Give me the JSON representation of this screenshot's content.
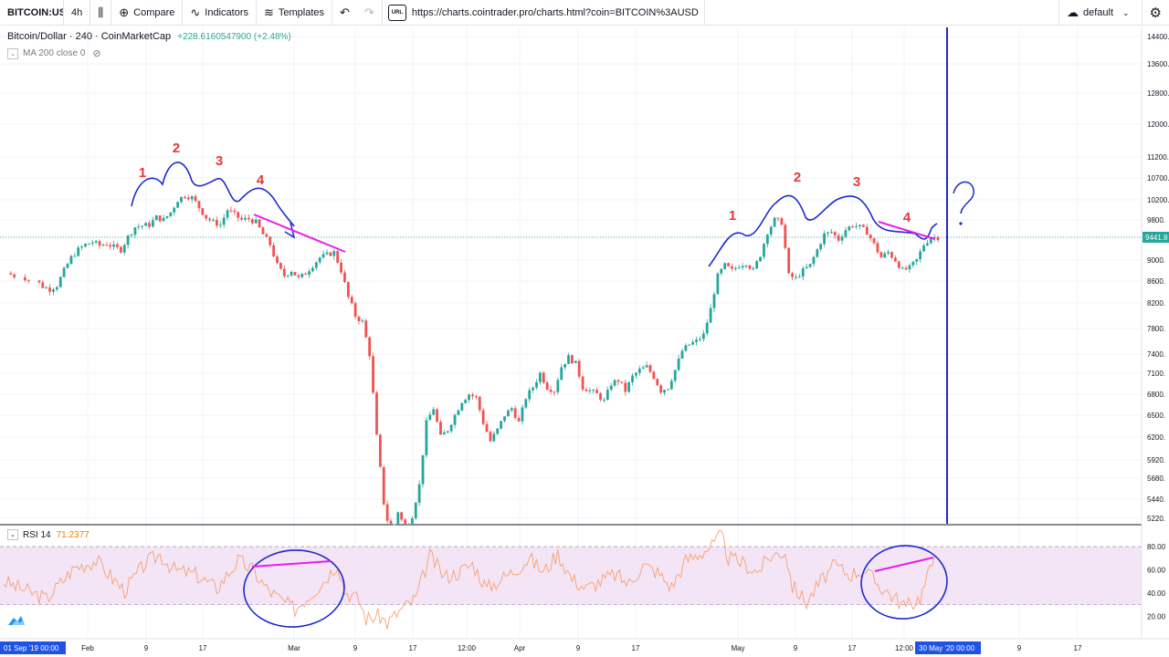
{
  "toolbar": {
    "symbol": "BITCOIN:USD",
    "interval": "4h",
    "compare_label": "Compare",
    "indicators_label": "Indicators",
    "templates_label": "Templates",
    "url": "https://charts.cointrader.pro/charts.html?coin=BITCOIN%3AUSD",
    "url_icon_text": "URL",
    "layout_label": "default"
  },
  "legend": {
    "title": "Bitcoin/Dollar · 240 · CoinMarketCap",
    "change": "+228.6160547900 (+2.48%)",
    "ma": "MA 200 close 0"
  },
  "rsi": {
    "label": "RSI 14",
    "value": "71.2377",
    "upper": 80,
    "lower": 30,
    "ticks": [
      80,
      60,
      40,
      20
    ],
    "tick_labels": [
      "80.00",
      "60.00",
      "40.00",
      "20.00"
    ]
  },
  "colors": {
    "up": "#26a69a",
    "down": "#ef5350",
    "rsi_line": "#f7a072",
    "rsi_band": "#f3e5f5",
    "annotation_blue": "#1e2ad1",
    "annotation_pink": "#e91ee8",
    "annotation_red": "#e53935"
  },
  "current_price_label": "9441.8",
  "x_labels": {
    "start_box": "01 Sep '19   00:00",
    "end_box": "30 May '20   00:00",
    "ticks": [
      "Feb",
      "9",
      "17",
      "Mar",
      "9",
      "17",
      "12:00",
      "Apr",
      "9",
      "17",
      "May",
      "9",
      "17",
      "12:00",
      "9",
      "17"
    ]
  },
  "chart_data": {
    "type": "candlestick",
    "title": "Bitcoin/Dollar · 240 · CoinMarketCap",
    "y_ticks": [
      14400,
      13600,
      12800,
      12000,
      11200,
      10700,
      10200,
      9800,
      9441.8,
      9000,
      8600,
      8200,
      7800,
      7400,
      7100,
      6800,
      6500,
      6200,
      5920,
      5680,
      5440,
      5220
    ],
    "y_tick_labels": [
      "14400.",
      "13600.",
      "12800.",
      "12000.",
      "11200.",
      "10700.",
      "10200.",
      "9800.",
      "9441.8",
      "9000.",
      "8600.",
      "8200.",
      "7800.",
      "7400.",
      "7100.",
      "6800.",
      "6500.",
      "6200.",
      "5920.",
      "5680.",
      "5440.",
      "5220."
    ],
    "last_price": 9441.8,
    "price_path": [
      [
        1,
        8750
      ],
      [
        3,
        8700
      ],
      [
        5,
        8620
      ],
      [
        6,
        8500
      ],
      [
        7,
        8450
      ],
      [
        8,
        8520
      ],
      [
        9,
        8800
      ],
      [
        10,
        9050
      ],
      [
        11,
        9200
      ],
      [
        12,
        9300
      ],
      [
        13,
        9350
      ],
      [
        14,
        9280
      ],
      [
        15,
        9320
      ],
      [
        16,
        9250
      ],
      [
        17,
        9200
      ],
      [
        18,
        9450
      ],
      [
        19,
        9650
      ],
      [
        20,
        9680
      ],
      [
        21,
        9700
      ],
      [
        22,
        9850
      ],
      [
        23,
        9800
      ],
      [
        24,
        9950
      ],
      [
        25,
        10200
      ],
      [
        26,
        10300
      ],
      [
        27,
        10250
      ],
      [
        28,
        10050
      ],
      [
        29,
        9850
      ],
      [
        30,
        9750
      ],
      [
        31,
        9700
      ],
      [
        32,
        10000
      ],
      [
        33,
        9900
      ],
      [
        34,
        9800
      ],
      [
        35,
        9820
      ],
      [
        36,
        9750
      ],
      [
        37,
        9500
      ],
      [
        38,
        9300
      ],
      [
        39,
        8900
      ],
      [
        40,
        8700
      ],
      [
        41,
        8800
      ],
      [
        42,
        8650
      ],
      [
        43,
        8750
      ],
      [
        44,
        8900
      ],
      [
        45,
        9050
      ],
      [
        46,
        9100
      ],
      [
        47,
        9150
      ],
      [
        48,
        8800
      ],
      [
        49,
        8300
      ],
      [
        50,
        8000
      ],
      [
        51,
        7900
      ],
      [
        52,
        7400
      ],
      [
        53,
        6200
      ],
      [
        54,
        5400
      ],
      [
        55,
        5000
      ],
      [
        56,
        5300
      ],
      [
        57,
        5100
      ],
      [
        58,
        5250
      ],
      [
        59,
        5600
      ],
      [
        60,
        6400
      ],
      [
        61,
        6600
      ],
      [
        62,
        6200
      ],
      [
        63,
        6300
      ],
      [
        64,
        6500
      ],
      [
        65,
        6700
      ],
      [
        66,
        6800
      ],
      [
        67,
        6750
      ],
      [
        68,
        6400
      ],
      [
        69,
        6150
      ],
      [
        70,
        6300
      ],
      [
        71,
        6500
      ],
      [
        72,
        6600
      ],
      [
        73,
        6400
      ],
      [
        74,
        6750
      ],
      [
        75,
        6900
      ],
      [
        76,
        7100
      ],
      [
        77,
        6900
      ],
      [
        78,
        6850
      ],
      [
        79,
        7200
      ],
      [
        80,
        7350
      ],
      [
        81,
        7250
      ],
      [
        82,
        6900
      ],
      [
        83,
        6850
      ],
      [
        84,
        6800
      ],
      [
        85,
        6700
      ],
      [
        86,
        6950
      ],
      [
        87,
        7000
      ],
      [
        88,
        6850
      ],
      [
        89,
        7050
      ],
      [
        90,
        7150
      ],
      [
        91,
        7200
      ],
      [
        92,
        7050
      ],
      [
        93,
        6850
      ],
      [
        94,
        6900
      ],
      [
        95,
        7150
      ],
      [
        96,
        7450
      ],
      [
        97,
        7550
      ],
      [
        98,
        7600
      ],
      [
        99,
        7700
      ],
      [
        100,
        8100
      ],
      [
        101,
        8700
      ],
      [
        102,
        8900
      ],
      [
        103,
        8800
      ],
      [
        104,
        8900
      ],
      [
        105,
        8950
      ],
      [
        106,
        8800
      ],
      [
        107,
        9100
      ],
      [
        108,
        9550
      ],
      [
        109,
        9800
      ],
      [
        110,
        9750
      ],
      [
        111,
        8700
      ],
      [
        112,
        8650
      ],
      [
        113,
        8800
      ],
      [
        114,
        8900
      ],
      [
        115,
        9200
      ],
      [
        116,
        9500
      ],
      [
        117,
        9550
      ],
      [
        118,
        9400
      ],
      [
        119,
        9600
      ],
      [
        120,
        9700
      ],
      [
        121,
        9650
      ],
      [
        122,
        9550
      ],
      [
        123,
        9300
      ],
      [
        124,
        9050
      ],
      [
        125,
        9150
      ],
      [
        126,
        9000
      ],
      [
        127,
        8800
      ],
      [
        128,
        8850
      ],
      [
        129,
        9000
      ],
      [
        130,
        9300
      ],
      [
        131,
        9441
      ]
    ],
    "rsi_path": [
      [
        0,
        50
      ],
      [
        6,
        35
      ],
      [
        10,
        62
      ],
      [
        13,
        68
      ],
      [
        17,
        42
      ],
      [
        20,
        66
      ],
      [
        22,
        73
      ],
      [
        24,
        60
      ],
      [
        27,
        56
      ],
      [
        30,
        44
      ],
      [
        33,
        68
      ],
      [
        35,
        60
      ],
      [
        37,
        44
      ],
      [
        39,
        34
      ],
      [
        41,
        26
      ],
      [
        43,
        38
      ],
      [
        45,
        50
      ],
      [
        47,
        66
      ],
      [
        48,
        42
      ],
      [
        50,
        34
      ],
      [
        51,
        18
      ],
      [
        53,
        20
      ],
      [
        54,
        14
      ],
      [
        56,
        26
      ],
      [
        58,
        35
      ],
      [
        60,
        72
      ],
      [
        62,
        54
      ],
      [
        64,
        58
      ],
      [
        66,
        65
      ],
      [
        68,
        44
      ],
      [
        70,
        52
      ],
      [
        72,
        60
      ],
      [
        74,
        70
      ],
      [
        76,
        58
      ],
      [
        78,
        74
      ],
      [
        80,
        52
      ],
      [
        82,
        44
      ],
      [
        84,
        50
      ],
      [
        86,
        56
      ],
      [
        88,
        48
      ],
      [
        90,
        64
      ],
      [
        92,
        58
      ],
      [
        94,
        45
      ],
      [
        96,
        68
      ],
      [
        98,
        74
      ],
      [
        100,
        82
      ],
      [
        101,
        90
      ],
      [
        102,
        70
      ],
      [
        104,
        66
      ],
      [
        106,
        58
      ],
      [
        108,
        72
      ],
      [
        110,
        76
      ],
      [
        111,
        46
      ],
      [
        113,
        32
      ],
      [
        115,
        50
      ],
      [
        117,
        64
      ],
      [
        119,
        56
      ],
      [
        121,
        60
      ],
      [
        123,
        48
      ],
      [
        125,
        38
      ],
      [
        127,
        28
      ],
      [
        129,
        36
      ],
      [
        131,
        71
      ]
    ]
  },
  "annotations": {
    "left_numbers": [
      "1",
      "2",
      "3",
      "4"
    ],
    "right_numbers": [
      "1",
      "2",
      "3",
      "4"
    ],
    "question": "?"
  }
}
